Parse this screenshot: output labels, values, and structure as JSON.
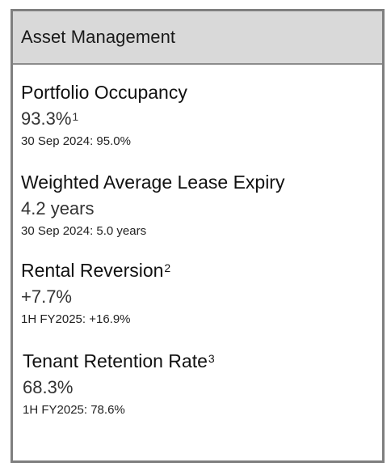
{
  "panel": {
    "title": "Asset Management"
  },
  "metrics": [
    {
      "label": "Portfolio Occupancy",
      "label_note": "",
      "value": "93.3%",
      "value_note": "1",
      "compare": "30 Sep 2024: 95.0%"
    },
    {
      "label": "Weighted Average Lease Expiry",
      "label_note": "",
      "value": "4.2 years",
      "value_note": "",
      "compare": "30 Sep 2024: 5.0 years"
    },
    {
      "label": "Rental Reversion",
      "label_note": "2",
      "value": "+7.7%",
      "value_note": "",
      "compare": "1H FY2025: +16.9%"
    },
    {
      "label": "Tenant Retention Rate",
      "label_note": "3",
      "value": "68.3%",
      "value_note": "",
      "compare": "1H FY2025: 78.6%"
    }
  ]
}
